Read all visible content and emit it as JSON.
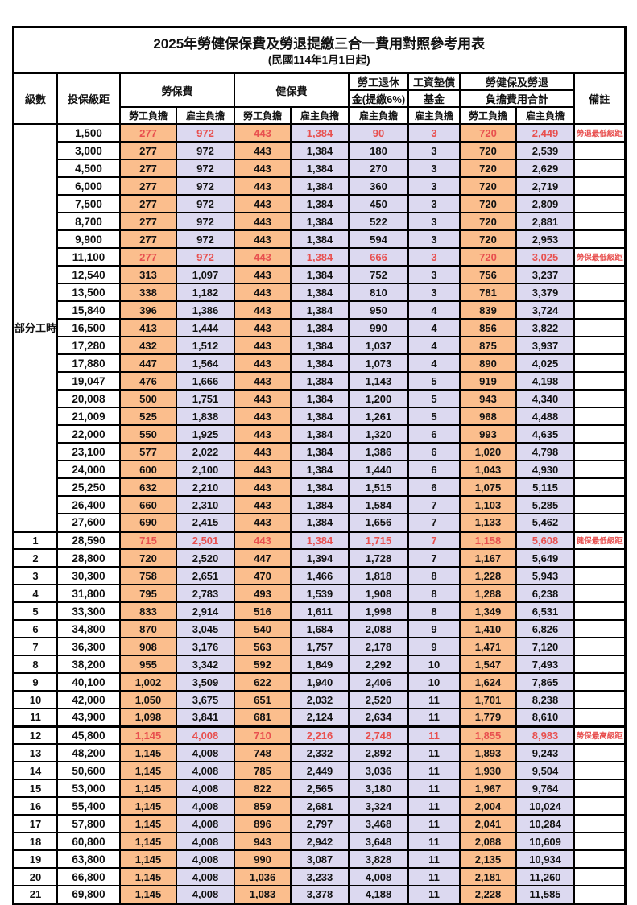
{
  "title": "2025年勞健保保費及勞退提繳三合一費用對照參考用表",
  "subtitle": "(民國114年1月1日起)",
  "colors": {
    "employee_col_bg": "#FBBE8D",
    "employer_col_bg": "#DCD9F0",
    "highlight_text": "#E8504F",
    "border": "#000000"
  },
  "header": {
    "level": "級數",
    "bracket": "投保級距",
    "labor_insurance": "勞保費",
    "health_insurance": "健保費",
    "pension_line1": "勞工退休",
    "pension_line2": "金(提繳6%)",
    "wage_fund_line1": "工資墊償",
    "wage_fund_line2": "基金",
    "total_line1": "勞健保及勞退",
    "total_line2": "負擔費用合計",
    "remark": "備註",
    "employee": "勞工負擔",
    "employer": "雇主負擔"
  },
  "part_time_label": "部分工時",
  "rows": [
    {
      "level": "",
      "bracket": "1,500",
      "values": [
        "277",
        "972",
        "443",
        "1,384",
        "90",
        "3",
        "720",
        "2,449"
      ],
      "remark": "勞退最低級距",
      "hl": true
    },
    {
      "level": "",
      "bracket": "3,000",
      "values": [
        "277",
        "972",
        "443",
        "1,384",
        "180",
        "3",
        "720",
        "2,539"
      ]
    },
    {
      "level": "",
      "bracket": "4,500",
      "values": [
        "277",
        "972",
        "443",
        "1,384",
        "270",
        "3",
        "720",
        "2,629"
      ]
    },
    {
      "level": "",
      "bracket": "6,000",
      "values": [
        "277",
        "972",
        "443",
        "1,384",
        "360",
        "3",
        "720",
        "2,719"
      ]
    },
    {
      "level": "",
      "bracket": "7,500",
      "values": [
        "277",
        "972",
        "443",
        "1,384",
        "450",
        "3",
        "720",
        "2,809"
      ]
    },
    {
      "level": "",
      "bracket": "8,700",
      "values": [
        "277",
        "972",
        "443",
        "1,384",
        "522",
        "3",
        "720",
        "2,881"
      ]
    },
    {
      "level": "",
      "bracket": "9,900",
      "values": [
        "277",
        "972",
        "443",
        "1,384",
        "594",
        "3",
        "720",
        "2,953"
      ]
    },
    {
      "level": "",
      "bracket": "11,100",
      "values": [
        "277",
        "972",
        "443",
        "1,384",
        "666",
        "3",
        "720",
        "3,025"
      ],
      "remark": "勞保最低級距",
      "hl": true
    },
    {
      "level": "",
      "bracket": "12,540",
      "values": [
        "313",
        "1,097",
        "443",
        "1,384",
        "752",
        "3",
        "756",
        "3,237"
      ]
    },
    {
      "level": "",
      "bracket": "13,500",
      "values": [
        "338",
        "1,182",
        "443",
        "1,384",
        "810",
        "3",
        "781",
        "3,379"
      ]
    },
    {
      "level": "",
      "bracket": "15,840",
      "values": [
        "396",
        "1,386",
        "443",
        "1,384",
        "950",
        "4",
        "839",
        "3,724"
      ]
    },
    {
      "level": "",
      "bracket": "16,500",
      "values": [
        "413",
        "1,444",
        "443",
        "1,384",
        "990",
        "4",
        "856",
        "3,822"
      ]
    },
    {
      "level": "",
      "bracket": "17,280",
      "values": [
        "432",
        "1,512",
        "443",
        "1,384",
        "1,037",
        "4",
        "875",
        "3,937"
      ]
    },
    {
      "level": "",
      "bracket": "17,880",
      "values": [
        "447",
        "1,564",
        "443",
        "1,384",
        "1,073",
        "4",
        "890",
        "4,025"
      ]
    },
    {
      "level": "",
      "bracket": "19,047",
      "values": [
        "476",
        "1,666",
        "443",
        "1,384",
        "1,143",
        "5",
        "919",
        "4,198"
      ]
    },
    {
      "level": "",
      "bracket": "20,008",
      "values": [
        "500",
        "1,751",
        "443",
        "1,384",
        "1,200",
        "5",
        "943",
        "4,340"
      ]
    },
    {
      "level": "",
      "bracket": "21,009",
      "values": [
        "525",
        "1,838",
        "443",
        "1,384",
        "1,261",
        "5",
        "968",
        "4,488"
      ]
    },
    {
      "level": "",
      "bracket": "22,000",
      "values": [
        "550",
        "1,925",
        "443",
        "1,384",
        "1,320",
        "6",
        "993",
        "4,635"
      ]
    },
    {
      "level": "",
      "bracket": "23,100",
      "values": [
        "577",
        "2,022",
        "443",
        "1,384",
        "1,386",
        "6",
        "1,020",
        "4,798"
      ]
    },
    {
      "level": "",
      "bracket": "24,000",
      "values": [
        "600",
        "2,100",
        "443",
        "1,384",
        "1,440",
        "6",
        "1,043",
        "4,930"
      ]
    },
    {
      "level": "",
      "bracket": "25,250",
      "values": [
        "632",
        "2,210",
        "443",
        "1,384",
        "1,515",
        "6",
        "1,075",
        "5,115"
      ]
    },
    {
      "level": "",
      "bracket": "26,400",
      "values": [
        "660",
        "2,310",
        "443",
        "1,384",
        "1,584",
        "7",
        "1,103",
        "5,285"
      ]
    },
    {
      "level": "",
      "bracket": "27,600",
      "values": [
        "690",
        "2,415",
        "443",
        "1,384",
        "1,656",
        "7",
        "1,133",
        "5,462"
      ]
    },
    {
      "level": "1",
      "bracket": "28,590",
      "values": [
        "715",
        "2,501",
        "443",
        "1,384",
        "1,715",
        "7",
        "1,158",
        "5,608"
      ],
      "remark": "健保最低級距",
      "hl": true,
      "thick": true
    },
    {
      "level": "2",
      "bracket": "28,800",
      "values": [
        "720",
        "2,520",
        "447",
        "1,394",
        "1,728",
        "7",
        "1,167",
        "5,649"
      ]
    },
    {
      "level": "3",
      "bracket": "30,300",
      "values": [
        "758",
        "2,651",
        "470",
        "1,466",
        "1,818",
        "8",
        "1,228",
        "5,943"
      ]
    },
    {
      "level": "4",
      "bracket": "31,800",
      "values": [
        "795",
        "2,783",
        "493",
        "1,539",
        "1,908",
        "8",
        "1,288",
        "6,238"
      ]
    },
    {
      "level": "5",
      "bracket": "33,300",
      "values": [
        "833",
        "2,914",
        "516",
        "1,611",
        "1,998",
        "8",
        "1,349",
        "6,531"
      ]
    },
    {
      "level": "6",
      "bracket": "34,800",
      "values": [
        "870",
        "3,045",
        "540",
        "1,684",
        "2,088",
        "9",
        "1,410",
        "6,826"
      ]
    },
    {
      "level": "7",
      "bracket": "36,300",
      "values": [
        "908",
        "3,176",
        "563",
        "1,757",
        "2,178",
        "9",
        "1,471",
        "7,120"
      ]
    },
    {
      "level": "8",
      "bracket": "38,200",
      "values": [
        "955",
        "3,342",
        "592",
        "1,849",
        "2,292",
        "10",
        "1,547",
        "7,493"
      ]
    },
    {
      "level": "9",
      "bracket": "40,100",
      "values": [
        "1,002",
        "3,509",
        "622",
        "1,940",
        "2,406",
        "10",
        "1,624",
        "7,865"
      ]
    },
    {
      "level": "10",
      "bracket": "42,000",
      "values": [
        "1,050",
        "3,675",
        "651",
        "2,032",
        "2,520",
        "11",
        "1,701",
        "8,238"
      ]
    },
    {
      "level": "11",
      "bracket": "43,900",
      "values": [
        "1,098",
        "3,841",
        "681",
        "2,124",
        "2,634",
        "11",
        "1,779",
        "8,610"
      ]
    },
    {
      "level": "12",
      "bracket": "45,800",
      "values": [
        "1,145",
        "4,008",
        "710",
        "2,216",
        "2,748",
        "11",
        "1,855",
        "8,983"
      ],
      "remark": "勞保最高級距",
      "hl": true,
      "thick": true
    },
    {
      "level": "13",
      "bracket": "48,200",
      "values": [
        "1,145",
        "4,008",
        "748",
        "2,332",
        "2,892",
        "11",
        "1,893",
        "9,243"
      ]
    },
    {
      "level": "14",
      "bracket": "50,600",
      "values": [
        "1,145",
        "4,008",
        "785",
        "2,449",
        "3,036",
        "11",
        "1,930",
        "9,504"
      ]
    },
    {
      "level": "15",
      "bracket": "53,000",
      "values": [
        "1,145",
        "4,008",
        "822",
        "2,565",
        "3,180",
        "11",
        "1,967",
        "9,764"
      ]
    },
    {
      "level": "16",
      "bracket": "55,400",
      "values": [
        "1,145",
        "4,008",
        "859",
        "2,681",
        "3,324",
        "11",
        "2,004",
        "10,024"
      ]
    },
    {
      "level": "17",
      "bracket": "57,800",
      "values": [
        "1,145",
        "4,008",
        "896",
        "2,797",
        "3,468",
        "11",
        "2,041",
        "10,284"
      ]
    },
    {
      "level": "18",
      "bracket": "60,800",
      "values": [
        "1,145",
        "4,008",
        "943",
        "2,942",
        "3,648",
        "11",
        "2,088",
        "10,609"
      ]
    },
    {
      "level": "19",
      "bracket": "63,800",
      "values": [
        "1,145",
        "4,008",
        "990",
        "3,087",
        "3,828",
        "11",
        "2,135",
        "10,934"
      ]
    },
    {
      "level": "20",
      "bracket": "66,800",
      "values": [
        "1,145",
        "4,008",
        "1,036",
        "3,233",
        "4,008",
        "11",
        "2,181",
        "11,260"
      ]
    },
    {
      "level": "21",
      "bracket": "69,800",
      "values": [
        "1,145",
        "4,008",
        "1,083",
        "3,378",
        "4,188",
        "11",
        "2,228",
        "11,585"
      ]
    }
  ]
}
